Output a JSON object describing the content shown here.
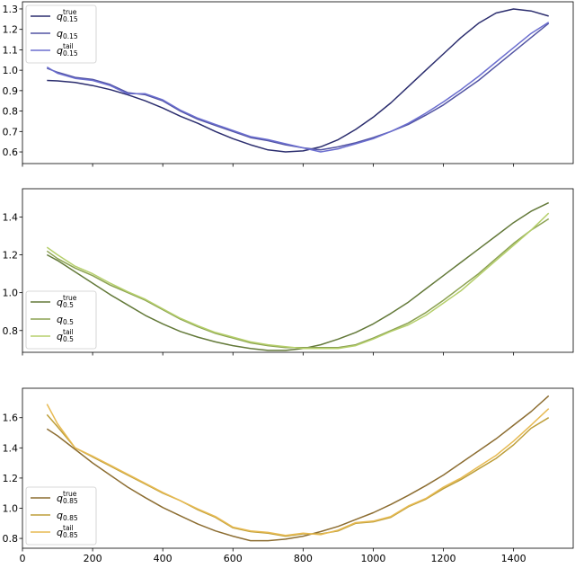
{
  "chart_data": [
    {
      "type": "line",
      "xlim": [
        0,
        1570
      ],
      "ylim": [
        0.543,
        1.335
      ],
      "yticks": [
        0.6,
        0.7,
        0.8,
        0.9,
        1.0,
        1.1,
        1.2,
        1.3
      ],
      "ytick_labels": [
        "0.6",
        "0.7",
        "0.8",
        "0.9",
        "1.0",
        "1.1",
        "1.2",
        "1.3"
      ],
      "xticks": [
        0,
        200,
        400,
        600,
        800,
        1000,
        1200,
        1400
      ],
      "show_xtick_labels": false,
      "legend_position": "upper-left",
      "x": [
        70,
        100,
        150,
        200,
        250,
        300,
        350,
        400,
        450,
        500,
        550,
        600,
        650,
        700,
        750,
        800,
        850,
        900,
        950,
        1000,
        1050,
        1100,
        1150,
        1200,
        1250,
        1300,
        1350,
        1400,
        1450,
        1500
      ],
      "series": [
        {
          "name": "q_true_0.15",
          "base": "q",
          "sup": "true",
          "sub": "0.15",
          "color": "#2b2d6e",
          "values": [
            0.95,
            0.948,
            0.94,
            0.925,
            0.905,
            0.88,
            0.85,
            0.815,
            0.775,
            0.74,
            0.7,
            0.665,
            0.635,
            0.61,
            0.6,
            0.605,
            0.625,
            0.66,
            0.71,
            0.77,
            0.84,
            0.92,
            1.0,
            1.08,
            1.16,
            1.23,
            1.28,
            1.3,
            1.29,
            1.265
          ]
        },
        {
          "name": "q_0.15",
          "base": "q",
          "sup": "",
          "sub": "0.15",
          "color": "#5254a3",
          "values": [
            1.01,
            0.99,
            0.965,
            0.955,
            0.93,
            0.89,
            0.88,
            0.85,
            0.8,
            0.76,
            0.73,
            0.7,
            0.67,
            0.655,
            0.635,
            0.62,
            0.61,
            0.625,
            0.645,
            0.67,
            0.7,
            0.735,
            0.78,
            0.83,
            0.89,
            0.95,
            1.02,
            1.09,
            1.16,
            1.23
          ]
        },
        {
          "name": "q_tail_0.15",
          "base": "q",
          "sup": "tail",
          "sub": "0.15",
          "color": "#6b6ecf",
          "values": [
            1.015,
            0.985,
            0.96,
            0.95,
            0.925,
            0.885,
            0.885,
            0.855,
            0.805,
            0.765,
            0.735,
            0.705,
            0.675,
            0.66,
            0.64,
            0.62,
            0.6,
            0.615,
            0.64,
            0.665,
            0.7,
            0.74,
            0.79,
            0.845,
            0.905,
            0.97,
            1.04,
            1.11,
            1.18,
            1.235
          ]
        }
      ]
    },
    {
      "type": "line",
      "xlim": [
        0,
        1570
      ],
      "ylim": [
        0.685,
        1.549
      ],
      "yticks": [
        0.8,
        1.0,
        1.2,
        1.4
      ],
      "ytick_labels": [
        "0.8",
        "1.0",
        "1.2",
        "1.4"
      ],
      "xticks": [
        0,
        200,
        400,
        600,
        800,
        1000,
        1200,
        1400
      ],
      "show_xtick_labels": false,
      "legend_position": "lower-left",
      "x": [
        70,
        100,
        150,
        200,
        250,
        300,
        350,
        400,
        450,
        500,
        550,
        600,
        650,
        700,
        750,
        800,
        850,
        900,
        950,
        1000,
        1050,
        1100,
        1150,
        1200,
        1250,
        1300,
        1350,
        1400,
        1450,
        1500
      ],
      "series": [
        {
          "name": "q_true_0.5",
          "base": "q",
          "sup": "true",
          "sub": "0.5",
          "color": "#637939",
          "values": [
            1.2,
            1.17,
            1.11,
            1.05,
            0.99,
            0.935,
            0.88,
            0.835,
            0.795,
            0.765,
            0.74,
            0.72,
            0.705,
            0.695,
            0.695,
            0.705,
            0.725,
            0.755,
            0.79,
            0.835,
            0.89,
            0.95,
            1.02,
            1.09,
            1.16,
            1.23,
            1.3,
            1.37,
            1.43,
            1.475
          ]
        },
        {
          "name": "q_0.5",
          "base": "q",
          "sup": "",
          "sub": "0.5",
          "color": "#8ca252",
          "values": [
            1.22,
            1.18,
            1.13,
            1.09,
            1.04,
            1.0,
            0.96,
            0.91,
            0.86,
            0.82,
            0.785,
            0.76,
            0.735,
            0.72,
            0.71,
            0.71,
            0.71,
            0.71,
            0.725,
            0.76,
            0.8,
            0.84,
            0.895,
            0.96,
            1.03,
            1.1,
            1.18,
            1.26,
            1.33,
            1.39
          ]
        },
        {
          "name": "q_tail_0.5",
          "base": "q",
          "sup": "tail",
          "sub": "0.5",
          "color": "#b5cf6b",
          "values": [
            1.24,
            1.2,
            1.14,
            1.1,
            1.05,
            1.005,
            0.965,
            0.915,
            0.865,
            0.825,
            0.79,
            0.765,
            0.74,
            0.725,
            0.715,
            0.705,
            0.705,
            0.705,
            0.72,
            0.755,
            0.795,
            0.83,
            0.88,
            0.945,
            1.01,
            1.09,
            1.17,
            1.25,
            1.33,
            1.42
          ]
        }
      ]
    },
    {
      "type": "line",
      "xlim": [
        0,
        1570
      ],
      "ylim": [
        0.735,
        1.795
      ],
      "yticks": [
        0.8,
        1.0,
        1.2,
        1.4,
        1.6
      ],
      "ytick_labels": [
        "0.8",
        "1.0",
        "1.2",
        "1.4",
        "1.6"
      ],
      "xticks": [
        0,
        200,
        400,
        600,
        800,
        1000,
        1200,
        1400
      ],
      "xtick_labels": [
        "0",
        "200",
        "400",
        "600",
        "800",
        "1000",
        "1200",
        "1400"
      ],
      "show_xtick_labels": true,
      "legend_position": "lower-left",
      "x": [
        70,
        100,
        150,
        200,
        250,
        300,
        350,
        400,
        450,
        500,
        550,
        600,
        650,
        700,
        750,
        800,
        850,
        900,
        950,
        1000,
        1050,
        1100,
        1150,
        1200,
        1250,
        1300,
        1350,
        1400,
        1450,
        1500
      ],
      "series": [
        {
          "name": "q_true_0.85",
          "base": "q",
          "sup": "true",
          "sub": "0.85",
          "color": "#8c6d31",
          "values": [
            1.525,
            1.48,
            1.39,
            1.3,
            1.22,
            1.14,
            1.07,
            1.005,
            0.95,
            0.895,
            0.85,
            0.815,
            0.785,
            0.785,
            0.795,
            0.815,
            0.845,
            0.88,
            0.925,
            0.97,
            1.025,
            1.085,
            1.15,
            1.22,
            1.3,
            1.38,
            1.46,
            1.55,
            1.64,
            1.745
          ]
        },
        {
          "name": "q_0.85",
          "base": "q",
          "sup": "",
          "sub": "0.85",
          "color": "#bd9e39",
          "values": [
            1.62,
            1.54,
            1.4,
            1.34,
            1.28,
            1.22,
            1.16,
            1.1,
            1.05,
            0.99,
            0.94,
            0.87,
            0.845,
            0.835,
            0.815,
            0.83,
            0.83,
            0.85,
            0.9,
            0.91,
            0.94,
            1.01,
            1.06,
            1.13,
            1.19,
            1.26,
            1.33,
            1.42,
            1.53,
            1.6
          ]
        },
        {
          "name": "q_tail_0.85",
          "base": "q",
          "sup": "tail",
          "sub": "0.85",
          "color": "#e7ba52",
          "values": [
            1.69,
            1.56,
            1.4,
            1.345,
            1.285,
            1.225,
            1.165,
            1.105,
            1.05,
            0.995,
            0.945,
            0.875,
            0.85,
            0.84,
            0.82,
            0.835,
            0.825,
            0.855,
            0.905,
            0.915,
            0.945,
            1.015,
            1.065,
            1.14,
            1.2,
            1.275,
            1.35,
            1.445,
            1.55,
            1.66
          ]
        }
      ]
    }
  ]
}
